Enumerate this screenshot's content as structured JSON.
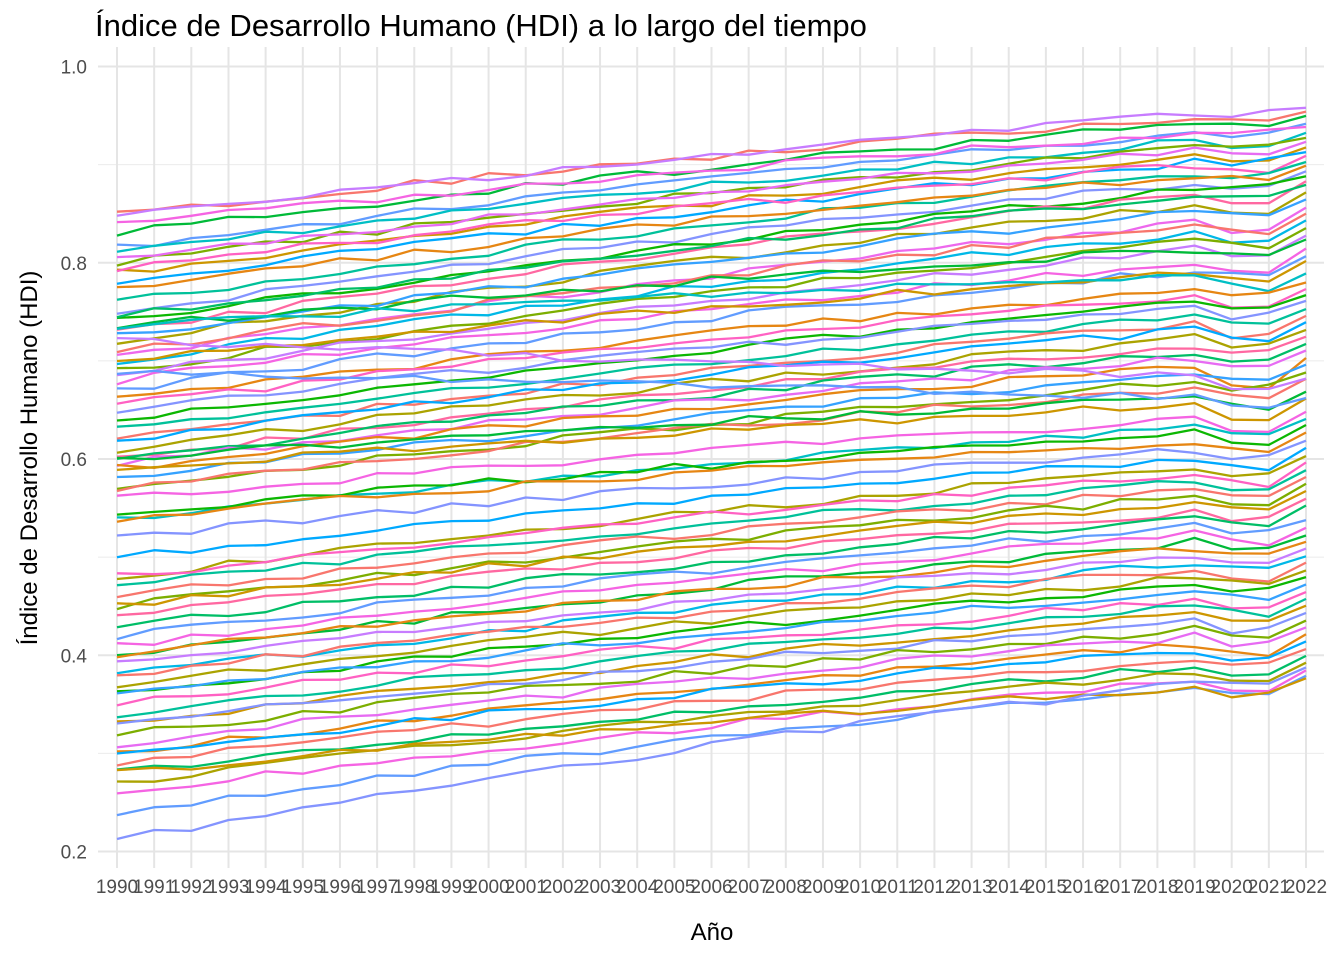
{
  "chart_data": {
    "type": "line",
    "title": "Índice de Desarrollo Humano (HDI) a lo largo del tiempo",
    "xlabel": "Año",
    "ylabel": "Índice de Desarrollo Humano (HDI)",
    "ylim": [
      0.2,
      1.0
    ],
    "yticks": [
      "0.2",
      "0.4",
      "0.6",
      "0.8",
      "1.0"
    ],
    "x": [
      1990,
      1991,
      1992,
      1993,
      1994,
      1995,
      1996,
      1997,
      1998,
      1999,
      2000,
      2001,
      2002,
      2003,
      2004,
      2005,
      2006,
      2007,
      2008,
      2009,
      2010,
      2011,
      2012,
      2013,
      2014,
      2015,
      2016,
      2017,
      2018,
      2019,
      2020,
      2021,
      2022
    ],
    "grid": true,
    "legend": "none",
    "series": [
      {
        "color": "#F8766D",
        "start": 0.85,
        "end": 0.962,
        "dip": 0.006
      },
      {
        "color": "#C77CFF",
        "start": 0.848,
        "end": 0.966,
        "dip": 0.003
      },
      {
        "color": "#00BA38",
        "start": 0.83,
        "end": 0.958,
        "dip": 0.005
      },
      {
        "color": "#619CFF",
        "start": 0.815,
        "end": 0.95,
        "dip": 0.006
      },
      {
        "color": "#F564E3",
        "start": 0.84,
        "end": 0.945,
        "dip": 0.004
      },
      {
        "color": "#00BFC4",
        "start": 0.812,
        "end": 0.94,
        "dip": 0.008
      },
      {
        "color": "#7CAE00",
        "start": 0.8,
        "end": 0.935,
        "dip": 0.005
      },
      {
        "color": "#CD9600",
        "start": 0.79,
        "end": 0.925,
        "dip": 0.006
      },
      {
        "color": "#E76BF3",
        "start": 0.805,
        "end": 0.93,
        "dip": 0.008
      },
      {
        "color": "#00A9FF",
        "start": 0.78,
        "end": 0.92,
        "dip": 0.005
      },
      {
        "color": "#FF61C3",
        "start": 0.795,
        "end": 0.915,
        "dip": 0.01
      },
      {
        "color": "#00C19A",
        "start": 0.76,
        "end": 0.91,
        "dip": 0.007
      },
      {
        "color": "#E68613",
        "start": 0.775,
        "end": 0.905,
        "dip": 0.006
      },
      {
        "color": "#8494FF",
        "start": 0.75,
        "end": 0.9,
        "dip": 0.008
      },
      {
        "color": "#0CB702",
        "start": 0.74,
        "end": 0.895,
        "dip": 0.005
      },
      {
        "color": "#FF68A1",
        "start": 0.73,
        "end": 0.89,
        "dip": 0.012
      },
      {
        "color": "#00BE67",
        "start": 0.745,
        "end": 0.885,
        "dip": 0.006
      },
      {
        "color": "#ABA300",
        "start": 0.72,
        "end": 0.878,
        "dip": 0.01
      },
      {
        "color": "#35A2FF",
        "start": 0.725,
        "end": 0.87,
        "dip": 0.008
      },
      {
        "color": "#ED68ED",
        "start": 0.705,
        "end": 0.862,
        "dip": 0.015
      },
      {
        "color": "#F8766D",
        "start": 0.71,
        "end": 0.855,
        "dip": 0.01
      },
      {
        "color": "#00B8E7",
        "start": 0.7,
        "end": 0.848,
        "dip": 0.012
      },
      {
        "color": "#7CAE00",
        "start": 0.69,
        "end": 0.84,
        "dip": 0.008
      },
      {
        "color": "#C77CFF",
        "start": 0.685,
        "end": 0.832,
        "dip": 0.01
      },
      {
        "color": "#00BA38",
        "start": 0.735,
        "end": 0.825,
        "dip": 0.01
      },
      {
        "color": "#F564E3",
        "start": 0.68,
        "end": 0.818,
        "dip": 0.012
      },
      {
        "color": "#619CFF",
        "start": 0.67,
        "end": 0.81,
        "dip": 0.01
      },
      {
        "color": "#CD9600",
        "start": 0.7,
        "end": 0.803,
        "dip": 0.008
      },
      {
        "color": "#00BFC4",
        "start": 0.735,
        "end": 0.796,
        "dip": 0.015
      },
      {
        "color": "#E68613",
        "start": 0.66,
        "end": 0.79,
        "dip": 0.01
      },
      {
        "color": "#FF61C3",
        "start": 0.655,
        "end": 0.783,
        "dip": 0.012
      },
      {
        "color": "#0CB702",
        "start": 0.64,
        "end": 0.777,
        "dip": 0.01
      },
      {
        "color": "#8494FF",
        "start": 0.65,
        "end": 0.77,
        "dip": 0.012
      },
      {
        "color": "#00C19A",
        "start": 0.63,
        "end": 0.762,
        "dip": 0.01
      },
      {
        "color": "#F8766D",
        "start": 0.62,
        "end": 0.755,
        "dip": 0.015
      },
      {
        "color": "#00A9FF",
        "start": 0.62,
        "end": 0.748,
        "dip": 0.012
      },
      {
        "color": "#ABA300",
        "start": 0.61,
        "end": 0.74,
        "dip": 0.01
      },
      {
        "color": "#FF68A1",
        "start": 0.6,
        "end": 0.733,
        "dip": 0.012
      },
      {
        "color": "#00BE67",
        "start": 0.6,
        "end": 0.725,
        "dip": 0.01
      },
      {
        "color": "#E76BF3",
        "start": 0.595,
        "end": 0.718,
        "dip": 0.012
      },
      {
        "color": "#E68613",
        "start": 0.59,
        "end": 0.71,
        "dip": 0.02
      },
      {
        "color": "#35A2FF",
        "start": 0.58,
        "end": 0.703,
        "dip": 0.01
      },
      {
        "color": "#7CAE00",
        "start": 0.57,
        "end": 0.695,
        "dip": 0.01
      },
      {
        "color": "#F8766D",
        "start": 0.57,
        "end": 0.688,
        "dip": 0.012
      },
      {
        "color": "#C77CFF",
        "start": 0.72,
        "end": 0.68,
        "dip": 0.01
      },
      {
        "color": "#00BA38",
        "start": 0.6,
        "end": 0.672,
        "dip": 0.01
      },
      {
        "color": "#CD9600",
        "start": 0.59,
        "end": 0.665,
        "dip": 0.015
      },
      {
        "color": "#619CFF",
        "start": 0.69,
        "end": 0.66,
        "dip": 0.01
      },
      {
        "color": "#F564E3",
        "start": 0.56,
        "end": 0.652,
        "dip": 0.012
      },
      {
        "color": "#00BFC4",
        "start": 0.54,
        "end": 0.645,
        "dip": 0.01
      },
      {
        "color": "#0CB702",
        "start": 0.545,
        "end": 0.638,
        "dip": 0.01
      },
      {
        "color": "#E68613",
        "start": 0.54,
        "end": 0.63,
        "dip": 0.012
      },
      {
        "color": "#8494FF",
        "start": 0.52,
        "end": 0.622,
        "dip": 0.01
      },
      {
        "color": "#00A9FF",
        "start": 0.5,
        "end": 0.615,
        "dip": 0.012
      },
      {
        "color": "#ABA300",
        "start": 0.48,
        "end": 0.607,
        "dip": 0.01
      },
      {
        "color": "#FF61C3",
        "start": 0.48,
        "end": 0.6,
        "dip": 0.012
      },
      {
        "color": "#00C19A",
        "start": 0.47,
        "end": 0.592,
        "dip": 0.01
      },
      {
        "color": "#F8766D",
        "start": 0.46,
        "end": 0.585,
        "dip": 0.012
      },
      {
        "color": "#7CAE00",
        "start": 0.45,
        "end": 0.578,
        "dip": 0.01
      },
      {
        "color": "#CD9600",
        "start": 0.45,
        "end": 0.57,
        "dip": 0.01
      },
      {
        "color": "#FF68A1",
        "start": 0.44,
        "end": 0.562,
        "dip": 0.012
      },
      {
        "color": "#00BE67",
        "start": 0.43,
        "end": 0.555,
        "dip": 0.01
      },
      {
        "color": "#619CFF",
        "start": 0.42,
        "end": 0.548,
        "dip": 0.01
      },
      {
        "color": "#F564E3",
        "start": 0.41,
        "end": 0.54,
        "dip": 0.012
      },
      {
        "color": "#00BA38",
        "start": 0.4,
        "end": 0.532,
        "dip": 0.01
      },
      {
        "color": "#E68613",
        "start": 0.4,
        "end": 0.525,
        "dip": 0.012
      },
      {
        "color": "#C77CFF",
        "start": 0.39,
        "end": 0.518,
        "dip": 0.01
      },
      {
        "color": "#00B8E7",
        "start": 0.38,
        "end": 0.51,
        "dip": 0.01
      },
      {
        "color": "#F8766D",
        "start": 0.38,
        "end": 0.503,
        "dip": 0.012
      },
      {
        "color": "#ABA300",
        "start": 0.37,
        "end": 0.495,
        "dip": 0.01
      },
      {
        "color": "#0CB702",
        "start": 0.36,
        "end": 0.488,
        "dip": 0.01
      },
      {
        "color": "#35A2FF",
        "start": 0.36,
        "end": 0.48,
        "dip": 0.01
      },
      {
        "color": "#FF61C3",
        "start": 0.35,
        "end": 0.472,
        "dip": 0.012
      },
      {
        "color": "#00C19A",
        "start": 0.34,
        "end": 0.465,
        "dip": 0.01
      },
      {
        "color": "#CD9600",
        "start": 0.33,
        "end": 0.458,
        "dip": 0.01
      },
      {
        "color": "#8494FF",
        "start": 0.33,
        "end": 0.45,
        "dip": 0.012
      },
      {
        "color": "#7CAE00",
        "start": 0.32,
        "end": 0.442,
        "dip": 0.01
      },
      {
        "color": "#E76BF3",
        "start": 0.31,
        "end": 0.435,
        "dip": 0.01
      },
      {
        "color": "#E68613",
        "start": 0.3,
        "end": 0.428,
        "dip": 0.012
      },
      {
        "color": "#00A9FF",
        "start": 0.3,
        "end": 0.42,
        "dip": 0.01
      },
      {
        "color": "#F8766D",
        "start": 0.29,
        "end": 0.412,
        "dip": 0.01
      },
      {
        "color": "#00BE67",
        "start": 0.28,
        "end": 0.405,
        "dip": 0.01
      },
      {
        "color": "#ABA300",
        "start": 0.27,
        "end": 0.398,
        "dip": 0.012
      },
      {
        "color": "#F564E3",
        "start": 0.26,
        "end": 0.39,
        "dip": 0.01
      },
      {
        "color": "#619CFF",
        "start": 0.24,
        "end": 0.385,
        "dip": 0.01
      },
      {
        "color": "#CD9600",
        "start": 0.28,
        "end": 0.38,
        "dip": 0.01
      },
      {
        "color": "#8494FF",
        "start": 0.212,
        "end": 0.395,
        "dip": 0.006
      }
    ]
  }
}
